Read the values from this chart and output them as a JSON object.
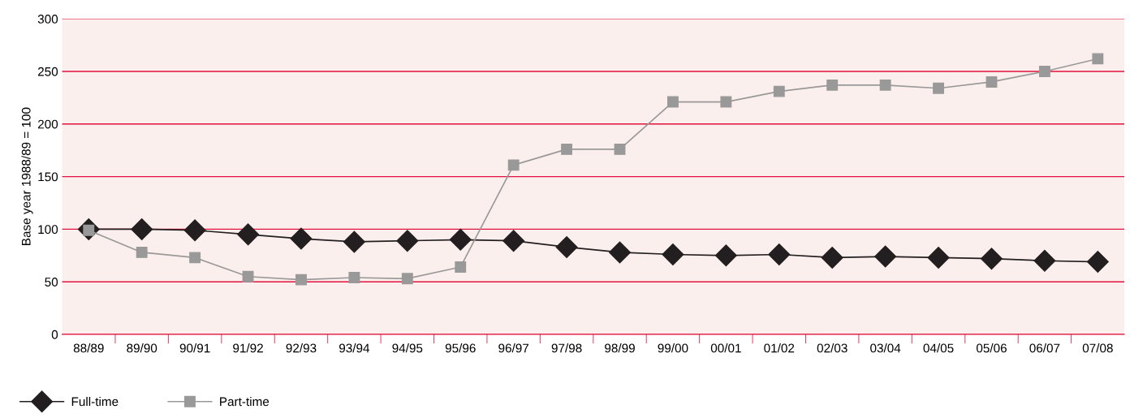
{
  "chart_data": {
    "type": "line",
    "ylabel": "Base year 1988/89 = 100",
    "categories": [
      "88/89",
      "89/90",
      "90/91",
      "91/92",
      "92/93",
      "93/94",
      "94/95",
      "95/96",
      "96/97",
      "97/98",
      "98/99",
      "99/00",
      "00/01",
      "01/02",
      "02/03",
      "03/04",
      "04/05",
      "05/06",
      "06/07",
      "07/08"
    ],
    "series": [
      {
        "name": "Full-time",
        "color": "#231f20",
        "marker": "diamond",
        "values": [
          100,
          100,
          99,
          95,
          91,
          88,
          89,
          90,
          89,
          83,
          78,
          76,
          75,
          76,
          73,
          74,
          73,
          72,
          70,
          69
        ]
      },
      {
        "name": "Part-time",
        "color": "#999999",
        "marker": "square",
        "values": [
          99,
          78,
          73,
          55,
          52,
          54,
          53,
          64,
          161,
          176,
          176,
          221,
          221,
          231,
          237,
          237,
          234,
          240,
          250,
          262
        ]
      }
    ],
    "ylim": [
      0,
      300
    ],
    "yticks": [
      0,
      50,
      100,
      150,
      200,
      250,
      300
    ],
    "grid": "y",
    "legend": "bottom left"
  }
}
